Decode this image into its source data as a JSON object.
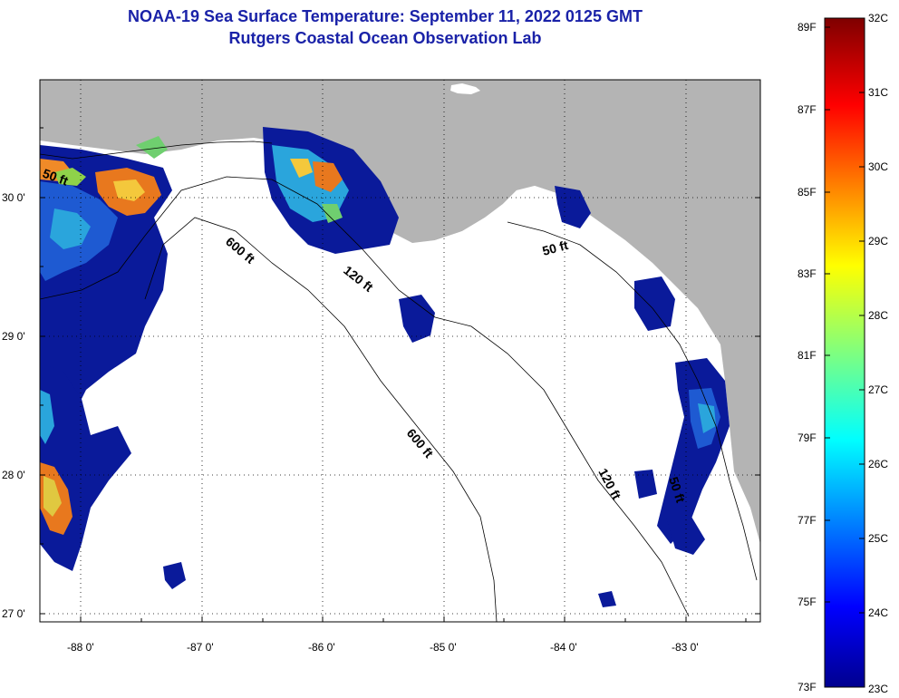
{
  "title": {
    "line1": "NOAA-19 Sea Surface Temperature:  September 11, 2022 0125 GMT",
    "line2": "Rutgers Coastal Ocean Observation Lab"
  },
  "axes": {
    "lon_labels": [
      "-88 0'",
      "-87 0'",
      "-86 0'",
      "-85 0'",
      "-84 0'",
      "-83 0'"
    ],
    "lat_labels": [
      "30 0'",
      "29 0'",
      "28 0'",
      "27 0'"
    ]
  },
  "contours": {
    "c50_west": "50 ft",
    "c50_east": "50 ft",
    "c50_south": "50 ft",
    "c120_north": "120 ft",
    "c120_south": "120 ft",
    "c600_north": "600 ft",
    "c600_south": "600 ft"
  },
  "colorbar": {
    "f_labels": [
      "89F",
      "87F",
      "85F",
      "83F",
      "81F",
      "79F",
      "77F",
      "75F",
      "73F"
    ],
    "c_labels": [
      "32C",
      "31C",
      "30C",
      "29C",
      "28C",
      "27C",
      "26C",
      "25C",
      "24C",
      "23C"
    ]
  },
  "colors": {
    "land": "#b4b4b4",
    "title": "#1a22a8",
    "cold": "#0a1a9a",
    "warm": "#e8781e"
  }
}
